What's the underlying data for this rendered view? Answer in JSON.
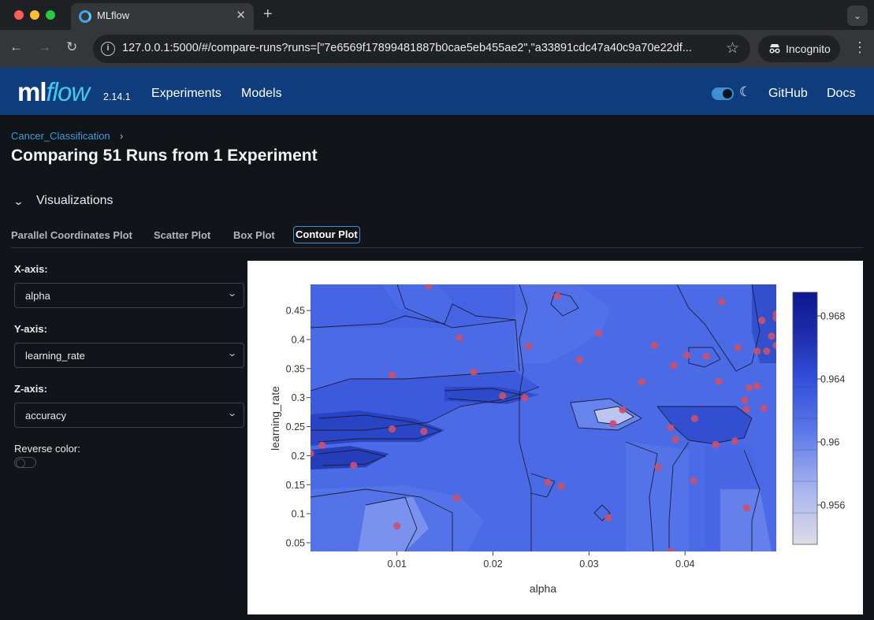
{
  "browser": {
    "tab_title": "MLflow",
    "url": "127.0.0.1:5000/#/compare-runs?runs=[\"7e6569f17899481887b0cae5eb455ae2\",\"a33891cdc47a40c9a70e22df...",
    "incognito_label": "Incognito"
  },
  "header": {
    "logo_ml": "ml",
    "logo_flow": "flow",
    "version": "2.14.1",
    "nav": [
      "Experiments",
      "Models"
    ],
    "right_links": [
      "GitHub",
      "Docs"
    ],
    "brand_color": "#0f3c7d"
  },
  "breadcrumb": "Cancer_Classification",
  "page_title": "Comparing 51 Runs from 1 Experiment",
  "section_title": "Visualizations",
  "tabs": [
    {
      "label": "Parallel Coordinates Plot",
      "active": false
    },
    {
      "label": "Scatter Plot",
      "active": false
    },
    {
      "label": "Box Plot",
      "active": false
    },
    {
      "label": "Contour Plot",
      "active": true
    }
  ],
  "controls": {
    "x_axis_label": "X-axis:",
    "x_axis_value": "alpha",
    "y_axis_label": "Y-axis:",
    "y_axis_value": "learning_rate",
    "z_axis_label": "Z-axis:",
    "z_axis_value": "accuracy",
    "reverse_color_label": "Reverse color:",
    "reverse_color": false
  },
  "chart_data": {
    "type": "contour",
    "xlabel": "alpha",
    "ylabel": "learning_rate",
    "xlim": [
      0.001,
      0.0495
    ],
    "ylim": [
      0.035,
      0.495
    ],
    "xticks": [
      0.01,
      0.02,
      0.03,
      0.04
    ],
    "xtick_labels": [
      "0.01",
      "0.02",
      "0.03",
      "0.04"
    ],
    "yticks": [
      0.05,
      0.1,
      0.15,
      0.2,
      0.25,
      0.3,
      0.35,
      0.4,
      0.45
    ],
    "ytick_labels": [
      "0.05",
      "0.1",
      "0.15",
      "0.2",
      "0.25",
      "0.3",
      "0.35",
      "0.4",
      "0.45"
    ],
    "colorbar": {
      "range": [
        0.9535,
        0.9695
      ],
      "ticks": [
        0.956,
        0.96,
        0.964,
        0.968
      ],
      "tick_labels": [
        "0.956",
        "0.96",
        "0.964",
        "0.968"
      ],
      "colorscale": [
        "#dcdce6",
        "#a8b4f0",
        "#5a78e8",
        "#3350dc",
        "#1a2aa8",
        "#0d1890"
      ]
    },
    "point_color": "#c8506e",
    "points": [
      [
        0.0133,
        0.492
      ],
      [
        0.0267,
        0.475
      ],
      [
        0.0438,
        0.465
      ],
      [
        0.048,
        0.433
      ],
      [
        0.0495,
        0.444
      ],
      [
        0.0495,
        0.437
      ],
      [
        0.0165,
        0.403
      ],
      [
        0.0237,
        0.389
      ],
      [
        0.031,
        0.411
      ],
      [
        0.0368,
        0.39
      ],
      [
        0.0455,
        0.386
      ],
      [
        0.0475,
        0.38
      ],
      [
        0.0485,
        0.38
      ],
      [
        0.0495,
        0.39
      ],
      [
        0.049,
        0.406
      ],
      [
        0.0095,
        0.339
      ],
      [
        0.018,
        0.344
      ],
      [
        0.029,
        0.365
      ],
      [
        0.0388,
        0.355
      ],
      [
        0.0402,
        0.373
      ],
      [
        0.0422,
        0.371
      ],
      [
        0.0435,
        0.328
      ],
      [
        0.0355,
        0.327
      ],
      [
        0.0467,
        0.317
      ],
      [
        0.0475,
        0.32
      ],
      [
        0.021,
        0.303
      ],
      [
        0.0233,
        0.3
      ],
      [
        0.0462,
        0.296
      ],
      [
        0.0464,
        0.28
      ],
      [
        0.0482,
        0.282
      ],
      [
        0.0335,
        0.279
      ],
      [
        0.0325,
        0.255
      ],
      [
        0.041,
        0.264
      ],
      [
        0.0385,
        0.248
      ],
      [
        0.039,
        0.228
      ],
      [
        0.0432,
        0.219
      ],
      [
        0.0452,
        0.225
      ],
      [
        0.0095,
        0.246
      ],
      [
        0.0128,
        0.242
      ],
      [
        0.0022,
        0.218
      ],
      [
        0.001,
        0.204
      ],
      [
        0.0055,
        0.183
      ],
      [
        0.0372,
        0.18
      ],
      [
        0.0409,
        0.157
      ],
      [
        0.0257,
        0.154
      ],
      [
        0.0271,
        0.147
      ],
      [
        0.0162,
        0.127
      ],
      [
        0.0464,
        0.11
      ],
      [
        0.032,
        0.093
      ],
      [
        0.01,
        0.079
      ],
      [
        0.0385,
        0.035
      ]
    ]
  }
}
